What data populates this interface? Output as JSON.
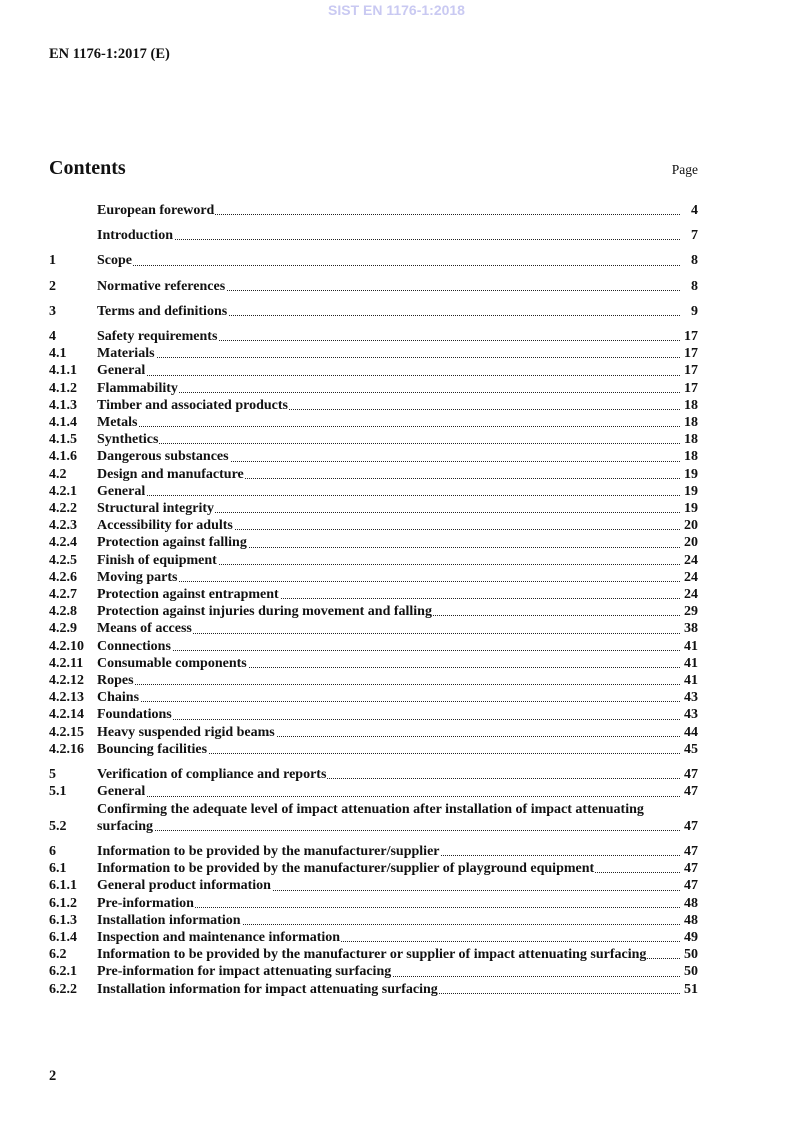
{
  "watermark": "SIST EN 1176-1:2018",
  "header": "EN 1176-1:2017 (E)",
  "contents_title": "Contents",
  "page_label": "Page",
  "toc_groups": [
    [
      {
        "num": "",
        "title": "European foreword",
        "page": "4"
      }
    ],
    [
      {
        "num": "",
        "title": "Introduction",
        "page": "7"
      }
    ],
    [
      {
        "num": "1",
        "title": "Scope",
        "page": "8"
      }
    ],
    [
      {
        "num": "2",
        "title": "Normative references",
        "page": "8"
      }
    ],
    [
      {
        "num": "3",
        "title": "Terms and definitions",
        "page": "9"
      }
    ],
    [
      {
        "num": "4",
        "title": "Safety requirements",
        "page": "17"
      },
      {
        "num": "4.1",
        "title": "Materials",
        "page": "17"
      },
      {
        "num": "4.1.1",
        "title": "General",
        "page": "17"
      },
      {
        "num": "4.1.2",
        "title": "Flammability",
        "page": "17"
      },
      {
        "num": "4.1.3",
        "title": "Timber and associated products",
        "page": "18"
      },
      {
        "num": "4.1.4",
        "title": "Metals",
        "page": "18"
      },
      {
        "num": "4.1.5",
        "title": "Synthetics",
        "page": "18"
      },
      {
        "num": "4.1.6",
        "title": "Dangerous substances",
        "page": "18"
      },
      {
        "num": "4.2",
        "title": "Design and manufacture",
        "page": "19"
      },
      {
        "num": "4.2.1",
        "title": "General",
        "page": "19"
      },
      {
        "num": "4.2.2",
        "title": "Structural integrity",
        "page": "19"
      },
      {
        "num": "4.2.3",
        "title": "Accessibility for adults",
        "page": "20"
      },
      {
        "num": "4.2.4",
        "title": "Protection against falling",
        "page": "20"
      },
      {
        "num": "4.2.5",
        "title": "Finish of equipment",
        "page": "24"
      },
      {
        "num": "4.2.6",
        "title": "Moving parts",
        "page": "24"
      },
      {
        "num": "4.2.7",
        "title": "Protection against entrapment",
        "page": "24"
      },
      {
        "num": "4.2.8",
        "title": "Protection against injuries during movement and falling",
        "page": "29"
      },
      {
        "num": "4.2.9",
        "title": "Means of access",
        "page": "38"
      },
      {
        "num": "4.2.10",
        "title": "Connections",
        "page": "41"
      },
      {
        "num": "4.2.11",
        "title": "Consumable components",
        "page": "41"
      },
      {
        "num": "4.2.12",
        "title": "Ropes",
        "page": "41"
      },
      {
        "num": "4.2.13",
        "title": "Chains",
        "page": "43"
      },
      {
        "num": "4.2.14",
        "title": "Foundations",
        "page": "43"
      },
      {
        "num": "4.2.15",
        "title": "Heavy suspended rigid beams",
        "page": "44"
      },
      {
        "num": "4.2.16",
        "title": "Bouncing facilities",
        "page": "45"
      }
    ],
    [
      {
        "num": "5",
        "title": "Verification of compliance and reports",
        "page": "47"
      },
      {
        "num": "5.1",
        "title": "General",
        "page": "47"
      },
      {
        "num": "5.2",
        "title": "Confirming the adequate level of impact attenuation after installation of impact attenuating surfacing",
        "page": "47"
      }
    ],
    [
      {
        "num": "6",
        "title": "Information to be provided by the manufacturer/supplier",
        "page": "47"
      },
      {
        "num": "6.1",
        "title": "Information to be provided by the manufacturer/supplier of playground equipment",
        "page": "47"
      },
      {
        "num": "6.1.1",
        "title": "General product information",
        "page": "47"
      },
      {
        "num": "6.1.2",
        "title": "Pre-information",
        "page": "48"
      },
      {
        "num": "6.1.3",
        "title": "Installation information",
        "page": "48"
      },
      {
        "num": "6.1.4",
        "title": "Inspection and maintenance information",
        "page": "49"
      },
      {
        "num": "6.2",
        "title": "Information to be provided by the manufacturer or supplier of impact attenuating surfacing",
        "page": "50"
      },
      {
        "num": "6.2.1",
        "title": "Pre-information for impact attenuating surfacing",
        "page": "50"
      },
      {
        "num": "6.2.2",
        "title": "Installation information for impact attenuating surfacing",
        "page": "51"
      }
    ]
  ],
  "page_number": "2"
}
